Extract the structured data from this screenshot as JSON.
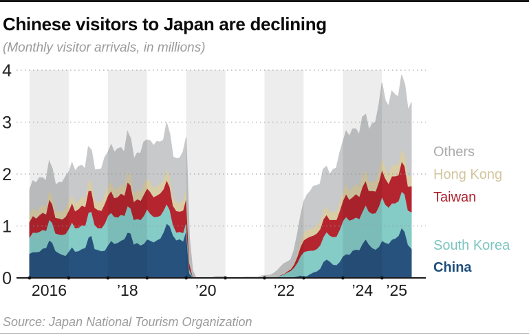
{
  "header": {
    "title": "Chinese visitors to Japan are declining",
    "subtitle": "(Monthly visitor arrivals, in millions)"
  },
  "footer": {
    "source": "Source: Japan National Tourism Organization"
  },
  "legend": {
    "items": [
      {
        "label": "Others",
        "color": "#a9abad"
      },
      {
        "label": "Hong Kong",
        "color": "#d2c69e"
      },
      {
        "label": "Taiwan",
        "color": "#ad1f2c"
      },
      {
        "label": "South Korea",
        "color": "#7cc5c0"
      },
      {
        "label": "China",
        "color": "#1d4e7b"
      }
    ]
  },
  "chart_data": {
    "type": "area",
    "stacked": true,
    "title": "Chinese visitors to Japan are declining",
    "subtitle": "(Monthly visitor arrivals, in millions)",
    "xlabel": "",
    "ylabel": "Monthly visitor arrivals (millions)",
    "x_start": "2016-01",
    "x_end": "2025-10",
    "months": 118,
    "ylim": [
      0,
      4
    ],
    "y_ticks": [
      0,
      1,
      2,
      3,
      4
    ],
    "grid": "dotted-horizontal",
    "legend_position": "right",
    "year_tick_month_indices": [
      0,
      12,
      24,
      36,
      48,
      60,
      72,
      84,
      96,
      108
    ],
    "x_tick_labels": [
      {
        "label": "2016",
        "month_index": 6
      },
      {
        "label": "’18",
        "month_index": 30
      },
      {
        "label": "’20",
        "month_index": 54
      },
      {
        "label": "’22",
        "month_index": 78
      },
      {
        "label": "’24",
        "month_index": 102
      },
      {
        "label": "’25",
        "month_index": 112.5
      }
    ],
    "shaded_year_bands_month_indices": [
      {
        "start": 0,
        "end": 12
      },
      {
        "start": 24,
        "end": 36
      },
      {
        "start": 48,
        "end": 60
      },
      {
        "start": 72,
        "end": 84
      },
      {
        "start": 96,
        "end": 108
      }
    ],
    "band_overlay_color": "rgba(0,0,0,0.07)",
    "gridline_color": "#9a9a9a",
    "axis_color": "#1a1a1a",
    "series": [
      {
        "name": "China",
        "color": "#27527e",
        "values": [
          0.47,
          0.5,
          0.5,
          0.51,
          0.57,
          0.58,
          0.73,
          0.68,
          0.52,
          0.48,
          0.45,
          0.43,
          0.51,
          0.6,
          0.51,
          0.52,
          0.56,
          0.58,
          0.78,
          0.82,
          0.56,
          0.54,
          0.52,
          0.53,
          0.63,
          0.72,
          0.66,
          0.68,
          0.72,
          0.75,
          0.88,
          0.86,
          0.65,
          0.68,
          0.63,
          0.66,
          0.75,
          0.72,
          0.69,
          0.73,
          0.76,
          0.88,
          1.05,
          1.0,
          0.82,
          0.73,
          0.75,
          0.71,
          0.92,
          0.09,
          0.01,
          0,
          0,
          0,
          0,
          0,
          0,
          0.01,
          0.01,
          0.01,
          0.01,
          0,
          0,
          0,
          0,
          0,
          0,
          0,
          0,
          0,
          0,
          0,
          0,
          0,
          0,
          0,
          0,
          0.01,
          0.01,
          0.02,
          0.02,
          0.02,
          0.03,
          0.05,
          0.03,
          0.04,
          0.08,
          0.11,
          0.13,
          0.18,
          0.31,
          0.36,
          0.32,
          0.26,
          0.25,
          0.31,
          0.42,
          0.46,
          0.45,
          0.53,
          0.55,
          0.54,
          0.66,
          0.75,
          0.65,
          0.58,
          0.55,
          0.6,
          0.72,
          0.68,
          0.66,
          0.74,
          0.76,
          0.81,
          0.97,
          0.89,
          0.64,
          0.57
        ]
      },
      {
        "name": "South Korea",
        "color": "#85cbc6",
        "values": [
          0.32,
          0.38,
          0.37,
          0.38,
          0.36,
          0.33,
          0.4,
          0.38,
          0.34,
          0.36,
          0.38,
          0.42,
          0.44,
          0.48,
          0.45,
          0.45,
          0.46,
          0.43,
          0.48,
          0.46,
          0.46,
          0.42,
          0.44,
          0.52,
          0.57,
          0.54,
          0.52,
          0.49,
          0.5,
          0.45,
          0.51,
          0.48,
          0.47,
          0.46,
          0.49,
          0.54,
          0.58,
          0.52,
          0.49,
          0.45,
          0.44,
          0.42,
          0.38,
          0.31,
          0.2,
          0.15,
          0.14,
          0.16,
          0.17,
          0.08,
          0.01,
          0,
          0,
          0,
          0,
          0,
          0,
          0,
          0,
          0,
          0,
          0,
          0,
          0,
          0,
          0,
          0,
          0,
          0,
          0,
          0,
          0.01,
          0.01,
          0.01,
          0.01,
          0.02,
          0.03,
          0.04,
          0.06,
          0.09,
          0.12,
          0.18,
          0.26,
          0.37,
          0.47,
          0.48,
          0.45,
          0.42,
          0.43,
          0.45,
          0.48,
          0.53,
          0.5,
          0.53,
          0.55,
          0.62,
          0.68,
          0.72,
          0.66,
          0.6,
          0.62,
          0.6,
          0.62,
          0.66,
          0.63,
          0.66,
          0.7,
          0.78,
          0.85,
          0.74,
          0.7,
          0.7,
          0.68,
          0.67,
          0.7,
          0.72,
          0.66,
          0.7
        ]
      },
      {
        "name": "Taiwan",
        "color": "#b5252f",
        "values": [
          0.3,
          0.32,
          0.28,
          0.32,
          0.33,
          0.32,
          0.39,
          0.36,
          0.3,
          0.31,
          0.3,
          0.33,
          0.35,
          0.37,
          0.33,
          0.36,
          0.38,
          0.36,
          0.42,
          0.4,
          0.33,
          0.35,
          0.34,
          0.38,
          0.39,
          0.42,
          0.36,
          0.39,
          0.41,
          0.39,
          0.46,
          0.44,
          0.35,
          0.38,
          0.37,
          0.41,
          0.4,
          0.42,
          0.38,
          0.41,
          0.43,
          0.41,
          0.46,
          0.44,
          0.37,
          0.41,
          0.39,
          0.43,
          0.46,
          0.12,
          0.01,
          0,
          0,
          0,
          0,
          0,
          0,
          0,
          0,
          0,
          0,
          0,
          0,
          0,
          0,
          0,
          0,
          0,
          0,
          0,
          0,
          0,
          0,
          0,
          0,
          0,
          0,
          0.01,
          0.01,
          0.02,
          0.03,
          0.06,
          0.12,
          0.18,
          0.23,
          0.25,
          0.27,
          0.29,
          0.3,
          0.31,
          0.34,
          0.33,
          0.3,
          0.33,
          0.32,
          0.36,
          0.39,
          0.44,
          0.4,
          0.43,
          0.45,
          0.43,
          0.48,
          0.47,
          0.4,
          0.44,
          0.42,
          0.47,
          0.52,
          0.5,
          0.46,
          0.52,
          0.52,
          0.5,
          0.58,
          0.54,
          0.46,
          0.5
        ]
      },
      {
        "name": "Hong Kong",
        "color": "#d9cda5",
        "values": [
          0.13,
          0.15,
          0.13,
          0.14,
          0.15,
          0.14,
          0.17,
          0.16,
          0.13,
          0.14,
          0.14,
          0.17,
          0.16,
          0.17,
          0.15,
          0.16,
          0.17,
          0.16,
          0.19,
          0.18,
          0.15,
          0.16,
          0.16,
          0.19,
          0.17,
          0.19,
          0.16,
          0.17,
          0.18,
          0.17,
          0.21,
          0.2,
          0.16,
          0.17,
          0.17,
          0.21,
          0.19,
          0.2,
          0.17,
          0.18,
          0.19,
          0.18,
          0.22,
          0.2,
          0.16,
          0.17,
          0.17,
          0.2,
          0.21,
          0.05,
          0.01,
          0,
          0,
          0,
          0,
          0,
          0,
          0,
          0,
          0,
          0,
          0,
          0,
          0,
          0,
          0,
          0,
          0,
          0,
          0,
          0,
          0,
          0,
          0,
          0,
          0,
          0,
          0,
          0.01,
          0.01,
          0.02,
          0.03,
          0.06,
          0.1,
          0.14,
          0.16,
          0.14,
          0.15,
          0.16,
          0.15,
          0.17,
          0.17,
          0.15,
          0.17,
          0.16,
          0.19,
          0.18,
          0.21,
          0.17,
          0.19,
          0.2,
          0.19,
          0.22,
          0.21,
          0.17,
          0.19,
          0.19,
          0.22,
          0.22,
          0.22,
          0.19,
          0.22,
          0.22,
          0.21,
          0.24,
          0.22,
          0.19,
          0.21
        ]
      },
      {
        "name": "Others",
        "color": "#c8c9ca",
        "values": [
          0.48,
          0.52,
          0.55,
          0.58,
          0.52,
          0.5,
          0.56,
          0.52,
          0.5,
          0.55,
          0.57,
          0.6,
          0.58,
          0.6,
          0.62,
          0.66,
          0.6,
          0.57,
          0.66,
          0.6,
          0.58,
          0.62,
          0.64,
          0.7,
          0.66,
          0.7,
          0.72,
          0.76,
          0.7,
          0.66,
          0.76,
          0.7,
          0.66,
          0.72,
          0.74,
          0.8,
          0.74,
          0.78,
          0.82,
          0.86,
          0.8,
          0.76,
          0.88,
          0.82,
          0.78,
          0.84,
          0.86,
          0.92,
          0.95,
          0.45,
          0.1,
          0.01,
          0.01,
          0.01,
          0.01,
          0.01,
          0.01,
          0.02,
          0.02,
          0.02,
          0.01,
          0.01,
          0.01,
          0.01,
          0.01,
          0.01,
          0.02,
          0.02,
          0.02,
          0.02,
          0.02,
          0.03,
          0.04,
          0.04,
          0.05,
          0.08,
          0.12,
          0.16,
          0.19,
          0.17,
          0.16,
          0.24,
          0.36,
          0.48,
          0.6,
          0.67,
          0.73,
          0.8,
          0.76,
          0.72,
          0.8,
          0.76,
          0.72,
          0.8,
          0.84,
          0.92,
          0.95,
          1.0,
          1.05,
          1.12,
          1.05,
          1.0,
          1.12,
          1.06,
          1.0,
          1.1,
          1.14,
          1.25,
          1.45,
          1.28,
          1.3,
          1.42,
          1.35,
          1.3,
          1.42,
          1.36,
          1.28,
          1.4
        ]
      }
    ]
  }
}
